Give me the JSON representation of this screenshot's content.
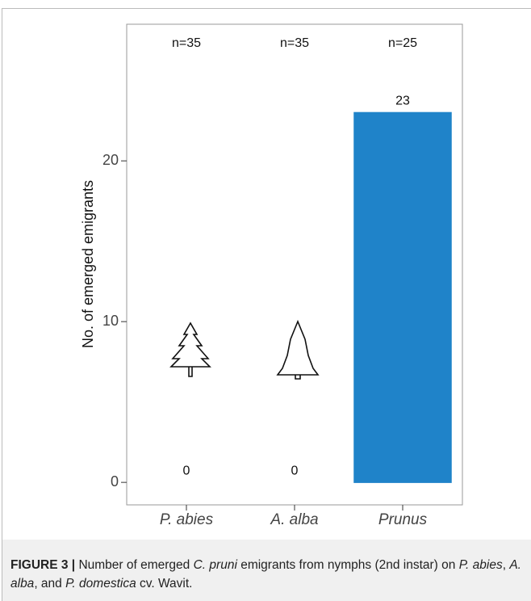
{
  "chart_data": {
    "type": "bar",
    "y_label": "No. of emerged emigrants",
    "categories": [
      "P. abies",
      "A. alba",
      "Prunus"
    ],
    "values": [
      0,
      0,
      23
    ],
    "colors": [
      "#2f5e3c",
      "#c6d632",
      "#1f83c9"
    ],
    "annotations": [
      "n=35",
      "n=35",
      "n=25"
    ],
    "ylim": [
      -1.4,
      28.5
    ],
    "yticks": [
      0,
      10,
      20
    ],
    "grid": false
  },
  "caption": {
    "label": "FIGURE 3 |",
    "parts": [
      {
        "text": " Number of emerged ",
        "italic": false
      },
      {
        "text": "C. pruni",
        "italic": true
      },
      {
        "text": " emigrants from nymphs (2nd instar) on ",
        "italic": false
      },
      {
        "text": "P. abies",
        "italic": true
      },
      {
        "text": ", ",
        "italic": false
      },
      {
        "text": "A. alba",
        "italic": true
      },
      {
        "text": ", and ",
        "italic": false
      },
      {
        "text": "P. domestica",
        "italic": true
      },
      {
        "text": " cv. Wavit.",
        "italic": false
      }
    ]
  }
}
